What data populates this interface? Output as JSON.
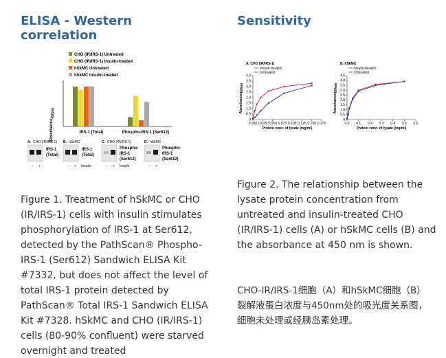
{
  "left": {
    "title": "ELISA - Western correlation",
    "caption": "Figure 1. Treatment of hSkMC or CHO (IR/IRS-1) cells with insulin stimulates phosphorylation of IRS-1 at Ser612, detected by the PathScan® Phospho-IRS-1 (Ser612) Sandwich ELISA Kit #7332, but does not affect the level of total IRS-1 protein detected by PathScan® Total IRS-1 Sandwich ELISA Kit #7328. hSkMC and CHO (IR/IRS-1) cells (80-90% confluent) were starved overnight and treated",
    "chart": {
      "legend": [
        {
          "label": "CHO (IR/IRS-1) Untreated",
          "color": "#7a8a24"
        },
        {
          "label": "CHO (IR/IRS-1) Insulin-treated",
          "color": "#e8d83c"
        },
        {
          "label": "hSkMC Untreated",
          "color": "#d9662a"
        },
        {
          "label": "hSkMC Insulin-treated",
          "color": "#a8a8a8"
        }
      ],
      "ylabel": "Absorbance",
      "ylabel_sub": "450nm",
      "categories": [
        "IRS-1 (Total)",
        "Phospho-IRS-1 (Ser612)"
      ]
    },
    "blots": {
      "a": {
        "letter": "A.",
        "cell": "CHO (IR/IRS-1)",
        "label_l1": "IRS-1",
        "label_l2": "(Total)"
      },
      "b": {
        "letter": "B.",
        "cell": "hSkMC",
        "label_l1": "IRS-1",
        "label_l2": "(Total)"
      },
      "c": {
        "letter": "C.",
        "cell": "CHO (IR/IRS-1)",
        "label_l1": "Phospho-",
        "label_l2": "IRS-1",
        "label_l3": "(Ser612)"
      },
      "d": {
        "letter": "D.",
        "cell": "hSkMC",
        "label_l1": "Phospho-",
        "label_l2": "IRS-1",
        "label_l3": "(Ser612)"
      },
      "minus": "–",
      "plus": "+",
      "insulin": "Insulin"
    }
  },
  "right": {
    "title": "Sensitivity",
    "caption": "Figure 2. The relationship between the lysate protein concentration from untreated and insulin-treated CHO (IR/IRS-1) cells (A) or hSkMC cells (B) and the absorbance at 450 nm is shown.",
    "caption_cn": "CHO-IR/IRS-1细胞（A）和hSkMC细胞（B）裂解液蛋白浓度与450nm处的吸光度关系图，细胞未处理或经胰岛素处理。",
    "plot_a": {
      "letter": "A. CHO (IR/IRS-1)",
      "legend": [
        "Insulin-treated",
        "Untreated"
      ],
      "xlabel": "Protein conc. of lysate (mg/ml)",
      "ylabel": "Absorbance",
      "ylabel_sub": "450nm",
      "xticks": [
        "0.000",
        "0.025",
        "0.050",
        "0.075",
        "0.100",
        "0.125",
        "0.150",
        "0.175"
      ],
      "yticks": [
        "0",
        "0.5",
        "1.0",
        "1.5",
        "2.0",
        "2.5",
        "3.0",
        "3.5",
        "4.0"
      ]
    },
    "plot_b": {
      "letter": "B. hSkMC",
      "legend": [
        "Insulin-treated",
        "Untreated"
      ],
      "xlabel": "Protein conc. of lysate (mg/ml)",
      "ylabel": "Absorbance",
      "ylabel_sub": "450nm",
      "xticks": [
        "0.0",
        "0.1",
        "0.2",
        "0.3",
        "0.4",
        "0.5",
        "0.6"
      ],
      "yticks": [
        "0",
        "0.5",
        "1.0",
        "1.5",
        "2.0",
        "2.5",
        "3.0",
        "3.5",
        "4.0",
        "4.5"
      ]
    },
    "colors": {
      "insulin": "#cc1f4f",
      "untreated": "#2b3f9a"
    }
  },
  "chart_data": [
    {
      "type": "bar",
      "categories": [
        "IRS-1 (Total)",
        "Phospho-IRS-1 (Ser612)"
      ],
      "series": [
        {
          "name": "CHO (IR/IRS-1) Untreated",
          "values": [
            3.9,
            0.9
          ]
        },
        {
          "name": "CHO (IR/IRS-1) Insulin-treated",
          "values": [
            3.6,
            3.0
          ]
        },
        {
          "name": "hSkMC Untreated",
          "values": [
            3.9,
            0.6
          ]
        },
        {
          "name": "hSkMC Insulin-treated",
          "values": [
            3.9,
            2.4
          ]
        }
      ],
      "ylim": [
        0,
        4.5
      ]
    },
    {
      "type": "line",
      "series": [
        {
          "name": "Insulin-treated",
          "x": [
            0.0,
            0.005,
            0.01,
            0.02,
            0.04,
            0.08,
            0.15
          ],
          "y": [
            0.1,
            0.8,
            1.4,
            2.0,
            2.6,
            3.0,
            3.3
          ]
        },
        {
          "name": "Untreated",
          "x": [
            0.0,
            0.005,
            0.01,
            0.02,
            0.04,
            0.08,
            0.15
          ],
          "y": [
            0.05,
            0.2,
            0.4,
            0.8,
            1.5,
            2.4,
            3.1
          ]
        }
      ],
      "xlim": [
        0,
        0.175
      ],
      "ylim": [
        0,
        4.0
      ]
    },
    {
      "type": "line",
      "series": [
        {
          "name": "Insulin-treated",
          "x": [
            0.0,
            0.01,
            0.02,
            0.05,
            0.1,
            0.25,
            0.5
          ],
          "y": [
            0.1,
            0.6,
            1.2,
            2.2,
            3.0,
            3.6,
            3.9
          ]
        },
        {
          "name": "Untreated",
          "x": [
            0.0,
            0.01,
            0.02,
            0.05,
            0.1,
            0.25,
            0.5
          ],
          "y": [
            0.1,
            0.5,
            1.1,
            2.1,
            2.9,
            3.5,
            3.9
          ]
        }
      ],
      "xlim": [
        0,
        0.6
      ],
      "ylim": [
        0,
        4.5
      ]
    }
  ]
}
